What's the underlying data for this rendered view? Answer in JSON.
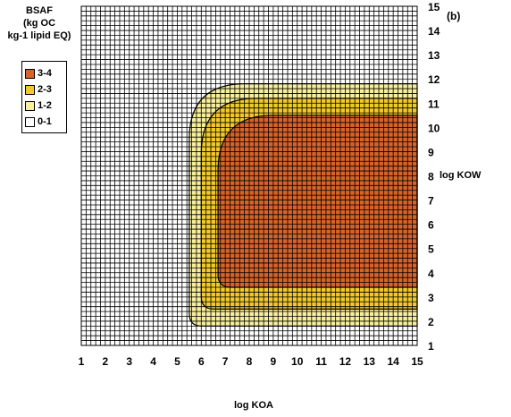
{
  "legend": {
    "title_lines": [
      "BSAF",
      "(kg OC",
      "kg-1 lipid EQ)"
    ],
    "items": [
      {
        "label": "3-4",
        "color": "#d8632a"
      },
      {
        "label": "2-3",
        "color": "#f1c92a"
      },
      {
        "label": "1-2",
        "color": "#f7ef9c"
      },
      {
        "label": "0-1",
        "color": "#ffffff"
      }
    ]
  },
  "panel_tag": "(b)",
  "chart_data": {
    "type": "heatmap",
    "xlabel": "log KOA",
    "ylabel": "log KOW",
    "xlim": [
      1,
      15
    ],
    "ylim": [
      1,
      15
    ],
    "x_ticks": [
      1,
      2,
      3,
      4,
      5,
      6,
      7,
      8,
      9,
      10,
      11,
      12,
      13,
      14,
      15
    ],
    "y_ticks": [
      1,
      2,
      3,
      4,
      5,
      6,
      7,
      8,
      9,
      10,
      11,
      12,
      13,
      14,
      15
    ],
    "grid": true,
    "y_axis_side": "right",
    "contour_bands": [
      {
        "label": "1-2",
        "koa_from": 5.5,
        "kow_range": [
          1.8,
          11.8
        ]
      },
      {
        "label": "2-3",
        "koa_from": 6.0,
        "kow_range": [
          2.5,
          11.2
        ]
      },
      {
        "label": "3-4",
        "koa_from": 6.7,
        "kow_range": [
          3.4,
          10.5
        ]
      },
      {
        "label": "0-1",
        "region": "elsewhere"
      }
    ]
  }
}
